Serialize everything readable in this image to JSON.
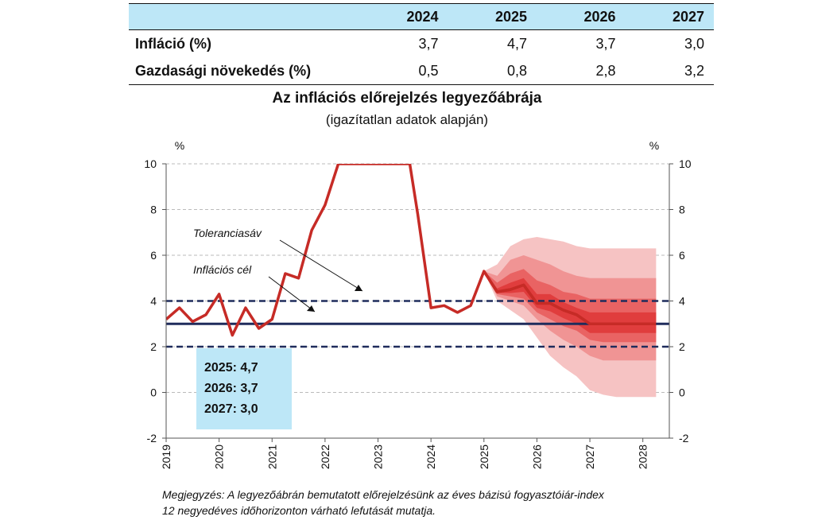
{
  "table": {
    "headers": [
      "",
      "2024",
      "2025",
      "2026",
      "2027"
    ],
    "rows": [
      {
        "label": "Infláció (%)",
        "values": [
          "3,7",
          "4,7",
          "3,7",
          "3,0"
        ]
      },
      {
        "label": "Gazdasági növekedés (%)",
        "values": [
          "0,5",
          "0,8",
          "2,8",
          "3,2"
        ]
      }
    ]
  },
  "chart_data": {
    "type": "line",
    "title": "Az inflációs előrejelzés legyezőábrája",
    "subtitle": "(igazítatlan adatok alapján)",
    "y_unit_left": "%",
    "y_unit_right": "%",
    "ylim": [
      -2,
      10
    ],
    "yticks": [
      "-2",
      "0",
      "2",
      "4",
      "6",
      "8",
      "10"
    ],
    "xlim": [
      2019,
      2028.5
    ],
    "xticks": [
      "2019",
      "2020",
      "2021",
      "2022",
      "2023",
      "2024",
      "2025",
      "2026",
      "2027",
      "2028"
    ],
    "grid": "horizontal dashed",
    "series": [
      {
        "name": "",
        "x": [
          2019.0,
          2019.25,
          2019.5,
          2019.75,
          2020.0,
          2020.25,
          2020.5,
          2020.75,
          2021.0,
          2021.25,
          2021.5,
          2021.75,
          2022.0,
          2022.25,
          2023.6,
          2023.75,
          2024.0,
          2024.25,
          2024.5,
          2024.75,
          2025.0,
          2025.25,
          2025.5,
          2025.75,
          2026.0,
          2026.25,
          2026.5,
          2026.75,
          2027.0
        ],
        "y": [
          3.2,
          3.7,
          3.1,
          3.4,
          4.3,
          2.5,
          3.7,
          2.8,
          3.2,
          5.2,
          5.0,
          7.1,
          8.2,
          10.0,
          10.0,
          7.8,
          3.7,
          3.8,
          3.5,
          3.8,
          5.3,
          4.4,
          4.5,
          4.7,
          3.9,
          3.9,
          3.6,
          3.4,
          3.0
        ]
      }
    ],
    "fan": {
      "x": [
        2025.0,
        2025.25,
        2025.5,
        2025.75,
        2026.0,
        2026.25,
        2026.5,
        2026.75,
        2027.0,
        2027.25,
        2027.5,
        2027.75,
        2028.0,
        2028.25
      ],
      "center": [
        5.3,
        4.4,
        4.5,
        4.7,
        3.9,
        3.9,
        3.6,
        3.4,
        3.0,
        3.0,
        3.0,
        3.0,
        3.0,
        3.0
      ],
      "bands": [
        {
          "lower": [
            5.3,
            4.0,
            3.6,
            3.2,
            2.4,
            1.6,
            1.1,
            0.7,
            0.1,
            -0.1,
            -0.2,
            -0.2,
            -0.2,
            -0.2
          ],
          "upper": [
            5.3,
            5.6,
            6.4,
            6.7,
            6.8,
            6.7,
            6.6,
            6.4,
            6.3,
            6.3,
            6.3,
            6.3,
            6.3,
            6.3
          ],
          "color": "#f6c3c3"
        },
        {
          "lower": [
            5.3,
            4.2,
            4.0,
            3.8,
            3.2,
            2.7,
            2.3,
            2.0,
            1.6,
            1.4,
            1.4,
            1.4,
            1.4,
            1.4
          ],
          "upper": [
            5.3,
            5.1,
            5.8,
            6.0,
            5.8,
            5.6,
            5.3,
            5.1,
            5.0,
            5.0,
            5.0,
            5.0,
            5.0,
            5.0
          ],
          "color": "#f09494"
        },
        {
          "lower": [
            5.3,
            4.3,
            4.2,
            4.1,
            3.5,
            3.2,
            2.9,
            2.7,
            2.3,
            2.2,
            2.2,
            2.2,
            2.2,
            2.2
          ],
          "upper": [
            5.3,
            4.8,
            5.2,
            5.4,
            4.9,
            4.7,
            4.4,
            4.3,
            4.1,
            4.1,
            4.1,
            4.1,
            4.1,
            4.1
          ],
          "color": "#e96363"
        },
        {
          "lower": [
            5.3,
            4.35,
            4.35,
            4.4,
            3.7,
            3.55,
            3.25,
            3.0,
            2.6,
            2.6,
            2.6,
            2.6,
            2.6,
            2.6
          ],
          "upper": [
            5.3,
            4.55,
            4.8,
            5.0,
            4.3,
            4.3,
            3.95,
            3.7,
            3.5,
            3.5,
            3.5,
            3.5,
            3.5,
            3.5
          ],
          "color": "#e03d3d"
        }
      ],
      "center_line_color": "#c62b26"
    },
    "reference_lines": [
      {
        "y": 3,
        "style": "solid",
        "color": "#1f2c5c"
      },
      {
        "y": 4,
        "style": "dashed",
        "color": "#1f2c5c"
      },
      {
        "y": 2,
        "style": "dashed",
        "color": "#1f2c5c"
      }
    ],
    "annotations": [
      {
        "text": "Toleranciasáv",
        "points_to_y": 4
      },
      {
        "text": "Inflációs cél",
        "points_to_y": 3
      }
    ],
    "line_color": "#c62b26"
  },
  "infobox": {
    "lines": [
      "2025: 4,7",
      "2026: 3,7",
      "2027: 3,0"
    ]
  },
  "note": {
    "line1": "Megjegyzés: A legyezőábrán bemutatott előrejelzésünk az éves bázisú fogyasztóiár-index",
    "line2": "12 negyedéves időhorizonton várható lefutását mutatja."
  }
}
